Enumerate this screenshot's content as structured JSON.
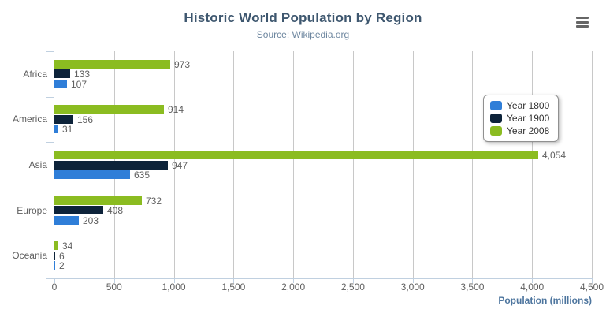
{
  "chart_data": {
    "type": "bar",
    "title": "Historic World Population by Region",
    "subtitle": "Source: Wikipedia.org",
    "categories": [
      "Africa",
      "America",
      "Asia",
      "Europe",
      "Oceania"
    ],
    "series": [
      {
        "name": "Year 1800",
        "color": "#2f7ed8",
        "values": [
          107,
          31,
          635,
          203,
          2
        ]
      },
      {
        "name": "Year 1900",
        "color": "#0d233a",
        "values": [
          133,
          156,
          947,
          408,
          6
        ]
      },
      {
        "name": "Year 2008",
        "color": "#8bbc21",
        "values": [
          973,
          914,
          4054,
          732,
          34
        ]
      }
    ],
    "bar_order_top_to_bottom": [
      "Year 2008",
      "Year 1900",
      "Year 1800"
    ],
    "xlabel": "Population (millions)",
    "value_axis": {
      "min": 0,
      "max": 4500,
      "tick_interval": 500,
      "tick_labels": [
        "0",
        "500",
        "1,000",
        "1,500",
        "2,000",
        "2,500",
        "3,000",
        "3,500",
        "4,000",
        "4,500"
      ]
    },
    "legend": {
      "items": [
        "Year 1800",
        "Year 1900",
        "Year 2008"
      ],
      "position": "middle-right"
    },
    "grid": true,
    "data_labels": true
  },
  "colors": {
    "title": "#3E576F",
    "subtitle": "#6D869F",
    "labels": "#606060",
    "grid": "#C8C8C8",
    "axis_line": "#C0D0E0",
    "axis_title": "#4d759e",
    "legend_border": "#909090",
    "menu_icon": "#666666"
  },
  "icons": {
    "context_menu": "hamburger-icon"
  }
}
